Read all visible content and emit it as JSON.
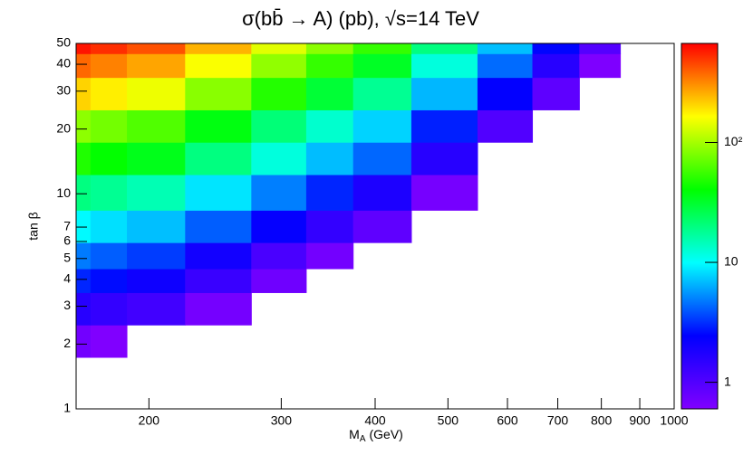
{
  "chart_data": {
    "type": "contour",
    "title": "σ(bb̄ → A) (pb), √s=14 TeV",
    "xlabel": "M",
    "xlabel_sub": "A",
    "xlabel_unit": "(GeV)",
    "ylabel": "tan β",
    "xlog": true,
    "ylog": true,
    "zlog": true,
    "xlim": [
      160,
      1000
    ],
    "ylim": [
      1,
      50
    ],
    "zlim": [
      0.6,
      670
    ],
    "xticks": [
      200,
      300,
      400,
      500,
      600,
      700,
      800,
      900,
      1000
    ],
    "yticks": [
      1,
      2,
      3,
      4,
      5,
      6,
      7,
      10,
      20,
      30,
      40,
      50
    ],
    "zticks": [
      1,
      10,
      {
        "value": 100,
        "label": "10²"
      }
    ],
    "colors": [
      "#8000ff",
      "#0000ff",
      "#00ffff",
      "#00ff00",
      "#ffff00",
      "#ff0000"
    ],
    "x": [
      160,
      175,
      200,
      250,
      300,
      350,
      400,
      500,
      600,
      700,
      800,
      900,
      1000
    ],
    "y": [
      1,
      1.5,
      2,
      3,
      4,
      5,
      7,
      10,
      15,
      20,
      30,
      40,
      50
    ],
    "z": [
      [
        null,
        null,
        null,
        null,
        null,
        null,
        null,
        null,
        null,
        null,
        null,
        null,
        null
      ],
      [
        null,
        null,
        null,
        null,
        null,
        null,
        null,
        null,
        null,
        null,
        null,
        null,
        null
      ],
      [
        0.7,
        0.6,
        null,
        null,
        null,
        null,
        null,
        null,
        null,
        null,
        null,
        null,
        null
      ],
      [
        1.6,
        1.4,
        1.2,
        0.68,
        null,
        null,
        null,
        null,
        null,
        null,
        null,
        null,
        null
      ],
      [
        3.0,
        2.6,
        2.1,
        1.3,
        0.72,
        null,
        null,
        null,
        null,
        null,
        null,
        null,
        null
      ],
      [
        4.8,
        4.1,
        3.4,
        2.0,
        1.1,
        0.69,
        null,
        null,
        null,
        null,
        null,
        null,
        null
      ],
      [
        9.7,
        8.4,
        7.0,
        4.1,
        2.3,
        1.4,
        0.86,
        null,
        null,
        null,
        null,
        null,
        null
      ],
      [
        20,
        18,
        15,
        8.6,
        4.9,
        3.0,
        1.8,
        0.67,
        null,
        null,
        null,
        null,
        null
      ],
      [
        48,
        41,
        35,
        20,
        12,
        6.9,
        4.3,
        1.6,
        null,
        null,
        null,
        null,
        null
      ],
      [
        88,
        76,
        63,
        37,
        21,
        13,
        7.8,
        2.9,
        1.0,
        null,
        null,
        null,
        null
      ],
      [
        210,
        180,
        150,
        86,
        49,
        30,
        18,
        6.7,
        2.4,
        0.87,
        null,
        null,
        null
      ],
      [
        380,
        330,
        270,
        160,
        90,
        54,
        33,
        12,
        4.4,
        1.6,
        0.61,
        null,
        null
      ],
      [
        600,
        520,
        430,
        250,
        140,
        87,
        54,
        20,
        7.0,
        2.5,
        0.97,
        null,
        null
      ]
    ]
  }
}
